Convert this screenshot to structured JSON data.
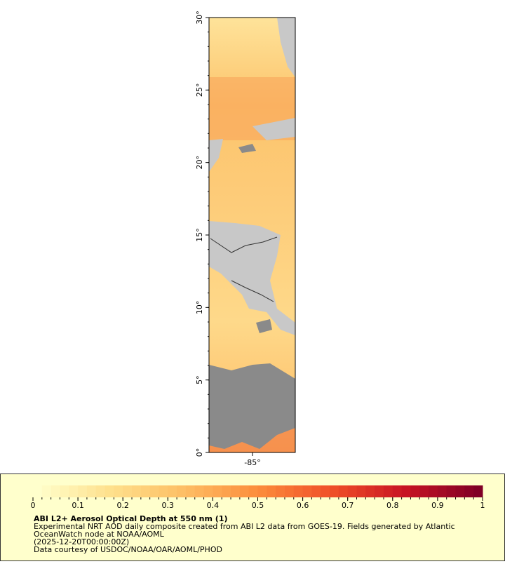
{
  "map": {
    "lat_ticks": [
      {
        "value": 30,
        "label": "30°"
      },
      {
        "value": 25,
        "label": "25°"
      },
      {
        "value": 20,
        "label": "20°"
      },
      {
        "value": 15,
        "label": "15°"
      },
      {
        "value": 10,
        "label": "10°"
      },
      {
        "value": 5,
        "label": "5°"
      },
      {
        "value": 0,
        "label": "0°"
      }
    ],
    "lon_ticks": [
      "-85°"
    ]
  },
  "colorbar": {
    "ticks": [
      0,
      0.1,
      0.2,
      0.3,
      0.4,
      0.5,
      0.6,
      0.7,
      0.8,
      0.9,
      1
    ]
  },
  "legend": {
    "title": "ABI L2+ Aerosol Optical Depth at 550 nm (1)",
    "lines": [
      "Experimental NRT AOD daily composite created from ABI L2 data from GOES-19. Fields generated by Atlantic",
      "OceanWatch node at NOAA/AOML",
      "(2025-12-20T00:00:00Z)",
      "Data courtesy of USDOC/NOAA/OAR/AOML/PHOD"
    ]
  }
}
